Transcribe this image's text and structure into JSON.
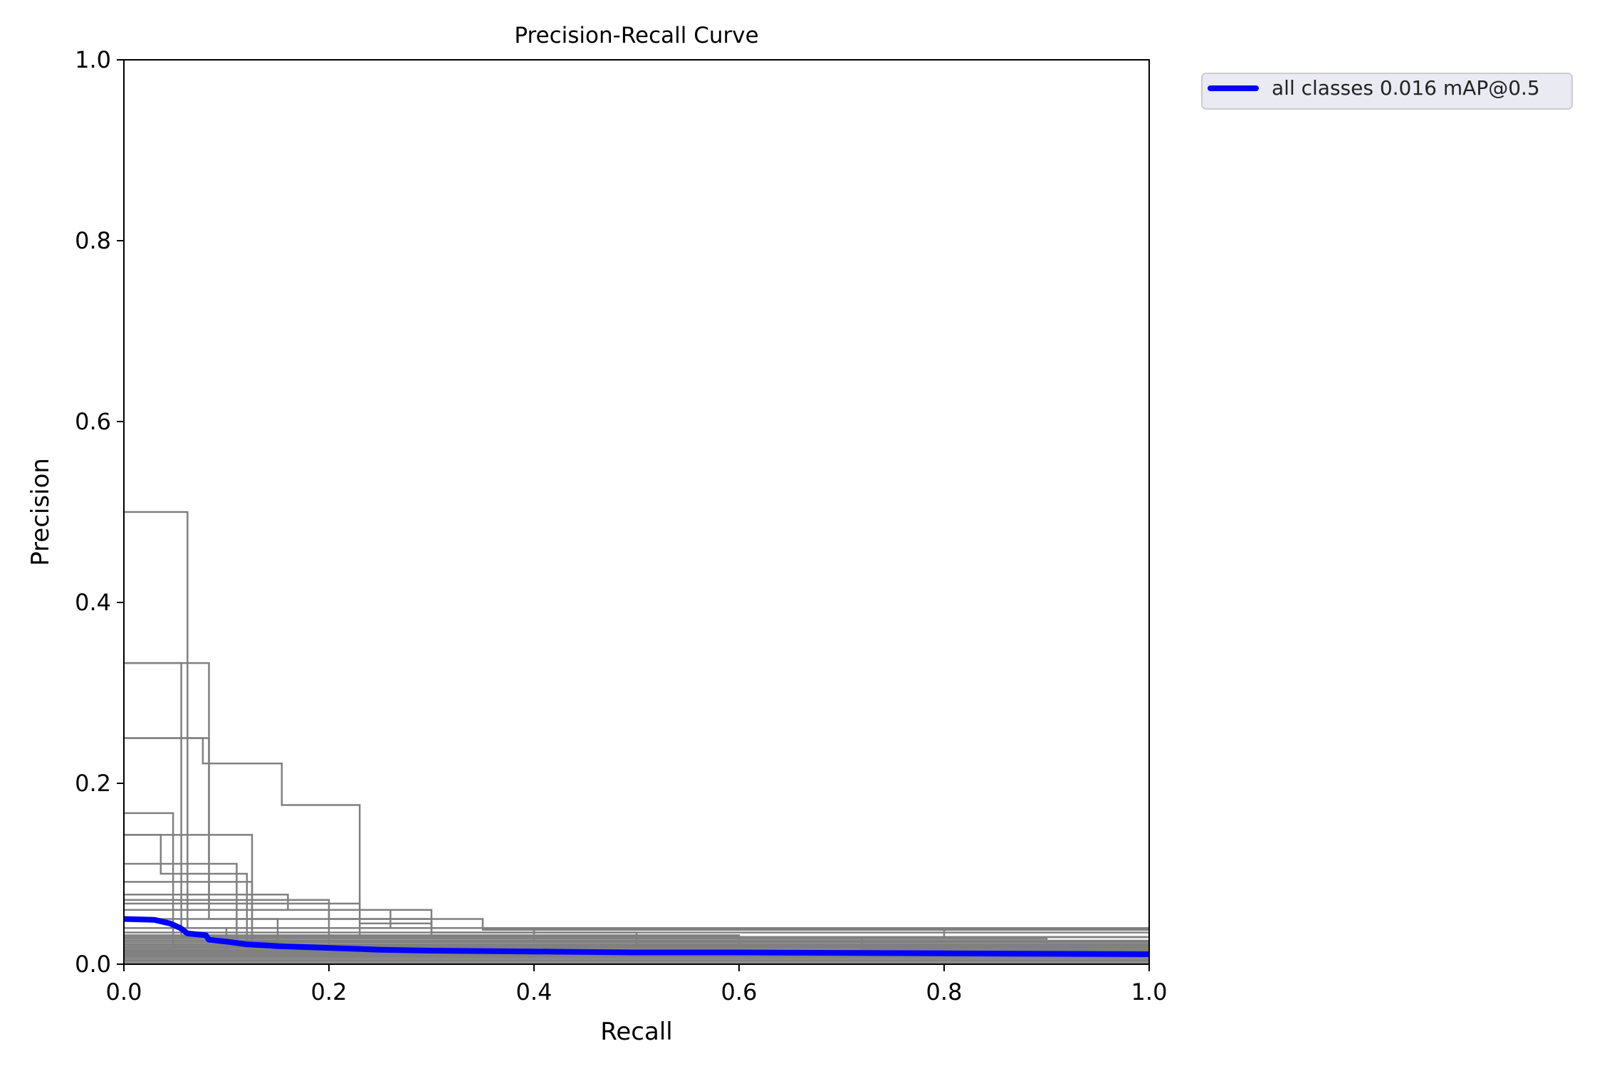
{
  "chart_data": {
    "type": "line",
    "title": "Precision-Recall Curve",
    "xlabel": "Recall",
    "ylabel": "Precision",
    "xlim": [
      0,
      1
    ],
    "ylim": [
      0,
      1
    ],
    "x_ticks": [
      "0.0",
      "0.2",
      "0.4",
      "0.6",
      "0.8",
      "1.0"
    ],
    "y_ticks": [
      "0.0",
      "0.2",
      "0.4",
      "0.6",
      "0.8",
      "1.0"
    ],
    "grid": false,
    "legend": {
      "placement": "outside top-right",
      "entries": [
        {
          "label": "all classes 0.016 mAP@0.5",
          "color": "#0000ff"
        }
      ]
    },
    "colors": {
      "per_class": "#808080",
      "all_classes": "#0000ff",
      "legend_background": "#eaeaf2"
    },
    "series": [
      {
        "name": "all classes 0.016 mAP@0.5",
        "color": "#0000ff",
        "x": [
          0,
          0.03,
          0.045,
          0.055,
          0.062,
          0.08,
          0.083,
          0.1,
          0.12,
          0.15,
          0.2,
          0.25,
          0.3,
          0.4,
          0.5,
          0.6,
          0.8,
          1.0
        ],
        "y": [
          0.05,
          0.049,
          0.045,
          0.04,
          0.034,
          0.032,
          0.027,
          0.025,
          0.022,
          0.02,
          0.018,
          0.016,
          0.015,
          0.014,
          0.013,
          0.013,
          0.012,
          0.011
        ]
      }
    ],
    "class_curves": [
      {
        "x": [
          0,
          0.062,
          0.062,
          0.1,
          0.1,
          1.0
        ],
        "y": [
          0.5,
          0.5,
          0.04,
          0.04,
          0.02,
          0.02
        ]
      },
      {
        "x": [
          0,
          0.083,
          0.083,
          0.15,
          0.15,
          1.0
        ],
        "y": [
          0.333,
          0.333,
          0.05,
          0.05,
          0.02,
          0.02
        ]
      },
      {
        "x": [
          0,
          0.056,
          0.056,
          0.1,
          0.1,
          1.0
        ],
        "y": [
          0.333,
          0.333,
          0.03,
          0.03,
          0.015,
          0.015
        ]
      },
      {
        "x": [
          0,
          0.083,
          0.083,
          0.2,
          0.2,
          1.0
        ],
        "y": [
          0.25,
          0.25,
          0.06,
          0.06,
          0.02,
          0.02
        ]
      },
      {
        "x": [
          0,
          0.077,
          0.077,
          0.154,
          0.154,
          0.23,
          0.23,
          1.0
        ],
        "y": [
          0.25,
          0.25,
          0.222,
          0.222,
          0.176,
          0.176,
          0.03,
          0.03
        ]
      },
      {
        "x": [
          0,
          0.048,
          0.048,
          1.0
        ],
        "y": [
          0.167,
          0.167,
          0.02,
          0.02
        ]
      },
      {
        "x": [
          0,
          0.036,
          0.036,
          0.12,
          0.12,
          1.0
        ],
        "y": [
          0.143,
          0.143,
          0.1,
          0.1,
          0.02,
          0.02
        ]
      },
      {
        "x": [
          0,
          0.125,
          0.125,
          1.0
        ],
        "y": [
          0.143,
          0.143,
          0.03,
          0.03
        ]
      },
      {
        "x": [
          0,
          0.11,
          0.11,
          1.0
        ],
        "y": [
          0.111,
          0.111,
          0.025,
          0.025
        ]
      },
      {
        "x": [
          0,
          0.125,
          0.125,
          1.0
        ],
        "y": [
          0.091,
          0.091,
          0.02,
          0.02
        ]
      },
      {
        "x": [
          0,
          0.16,
          0.16,
          0.26,
          0.26,
          1.0
        ],
        "y": [
          0.077,
          0.077,
          0.06,
          0.06,
          0.04,
          0.04
        ]
      },
      {
        "x": [
          0,
          0.2,
          0.2,
          0.3,
          0.3,
          1.0
        ],
        "y": [
          0.071,
          0.071,
          0.05,
          0.05,
          0.035,
          0.035
        ]
      },
      {
        "x": [
          0,
          0.23,
          0.23,
          0.3,
          0.3,
          1.0
        ],
        "y": [
          0.067,
          0.067,
          0.045,
          0.045,
          0.03,
          0.03
        ]
      },
      {
        "x": [
          0,
          0.3,
          0.3,
          0.8,
          0.8,
          1.0
        ],
        "y": [
          0.06,
          0.06,
          0.04,
          0.04,
          0.03,
          0.03
        ]
      },
      {
        "x": [
          0,
          0.35,
          0.35,
          1.0
        ],
        "y": [
          0.05,
          0.05,
          0.038,
          0.038
        ]
      },
      {
        "x": [
          0,
          0.4,
          0.4,
          1.0
        ],
        "y": [
          0.04,
          0.04,
          0.025,
          0.025
        ]
      },
      {
        "x": [
          0,
          0.5,
          0.5,
          1.0
        ],
        "y": [
          0.035,
          0.035,
          0.022,
          0.022
        ]
      },
      {
        "x": [
          0,
          0.6,
          0.6,
          1.0
        ],
        "y": [
          0.032,
          0.032,
          0.02,
          0.02
        ]
      },
      {
        "x": [
          0,
          0.72,
          0.72,
          1.0
        ],
        "y": [
          0.03,
          0.03,
          0.018,
          0.018
        ]
      },
      {
        "x": [
          0,
          0.9,
          0.9,
          1.0
        ],
        "y": [
          0.028,
          0.028,
          0.015,
          0.015
        ]
      },
      {
        "x": [
          0,
          1.0
        ],
        "y": [
          0.026,
          0.026
        ]
      },
      {
        "x": [
          0,
          1.0
        ],
        "y": [
          0.024,
          0.024
        ]
      },
      {
        "x": [
          0,
          1.0
        ],
        "y": [
          0.022,
          0.022
        ]
      },
      {
        "x": [
          0,
          1.0
        ],
        "y": [
          0.02,
          0.02
        ]
      },
      {
        "x": [
          0,
          1.0
        ],
        "y": [
          0.018,
          0.018
        ]
      },
      {
        "x": [
          0,
          1.0
        ],
        "y": [
          0.016,
          0.016
        ]
      },
      {
        "x": [
          0,
          1.0
        ],
        "y": [
          0.014,
          0.014
        ]
      },
      {
        "x": [
          0,
          1.0
        ],
        "y": [
          0.012,
          0.012
        ]
      },
      {
        "x": [
          0,
          1.0
        ],
        "y": [
          0.01,
          0.01
        ]
      },
      {
        "x": [
          0,
          1.0
        ],
        "y": [
          0.008,
          0.008
        ]
      },
      {
        "x": [
          0,
          1.0
        ],
        "y": [
          0.006,
          0.006
        ]
      },
      {
        "x": [
          0,
          1.0
        ],
        "y": [
          0.004,
          0.004
        ]
      },
      {
        "x": [
          0,
          1.0
        ],
        "y": [
          0.002,
          0.002
        ]
      }
    ]
  }
}
